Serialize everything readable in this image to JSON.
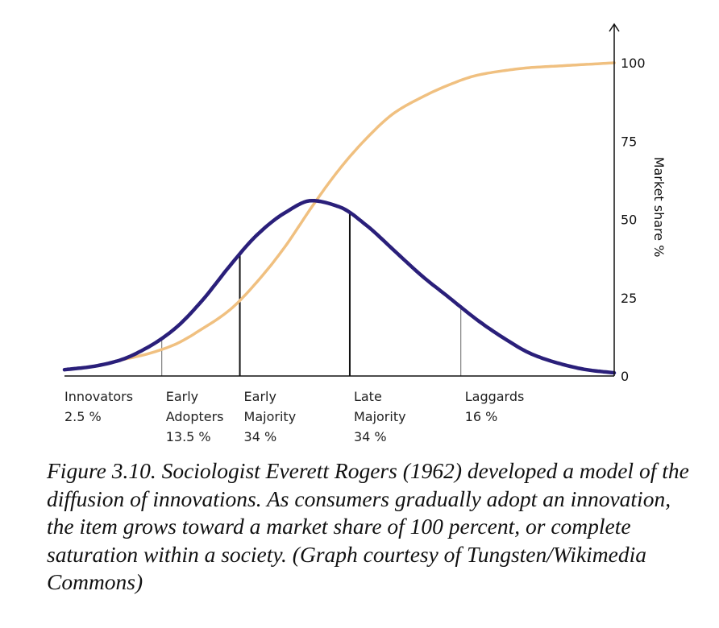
{
  "chart_data": {
    "type": "line",
    "title": "",
    "xlabel": "",
    "ylabel": "Market share %",
    "ylim": [
      0,
      100
    ],
    "yticks": [
      0,
      25,
      50,
      75,
      100
    ],
    "grid": false,
    "legend": "none",
    "series": [
      {
        "role": "adoption-curve",
        "color": "#2a1f7a",
        "x": [
          0,
          0.05,
          0.1,
          0.15,
          0.2,
          0.25,
          0.3,
          0.35,
          0.4,
          0.45,
          0.5,
          0.55,
          0.6,
          0.65,
          0.7,
          0.75,
          0.8,
          0.85,
          0.9,
          0.95,
          1
        ],
        "y": [
          2,
          3,
          5,
          9,
          15,
          24,
          35,
          45,
          52,
          56,
          54,
          48,
          40,
          32,
          25,
          18,
          12,
          7,
          4,
          2,
          1
        ]
      },
      {
        "role": "market-share-curve",
        "color": "#f0c080",
        "x": [
          0,
          0.05,
          0.1,
          0.15,
          0.2,
          0.25,
          0.3,
          0.35,
          0.4,
          0.45,
          0.5,
          0.55,
          0.6,
          0.65,
          0.7,
          0.75,
          0.8,
          0.85,
          0.9,
          0.95,
          1
        ],
        "y": [
          2,
          3,
          5,
          7,
          10,
          15,
          21,
          30,
          41,
          54,
          66,
          76,
          84,
          89,
          93,
          96,
          97.5,
          98.5,
          99,
          99.5,
          100
        ]
      }
    ],
    "dividers": [
      {
        "x": 0.177,
        "weight": "thin"
      },
      {
        "x": 0.319,
        "weight": "bold"
      },
      {
        "x": 0.519,
        "weight": "bold"
      },
      {
        "x": 0.721,
        "weight": "thin"
      }
    ],
    "categories": [
      {
        "lines": [
          "Innovators",
          "2.5 %"
        ]
      },
      {
        "lines": [
          "Early",
          "Adopters",
          "13.5 %"
        ]
      },
      {
        "lines": [
          "Early",
          "Majority",
          "34 %"
        ]
      },
      {
        "lines": [
          "Late",
          "Majority",
          "34 %"
        ]
      },
      {
        "lines": [
          "Laggards",
          "16 %"
        ]
      }
    ]
  },
  "caption": "Figure 3.10. Sociologist Everett Rogers (1962) developed a model of the diffusion of innovations. As consumers gradually adopt an innovation, the item grows toward a market share of 100 percent, or complete saturation within a society. (Graph courtesy of Tungsten/Wikimedia Commons)"
}
